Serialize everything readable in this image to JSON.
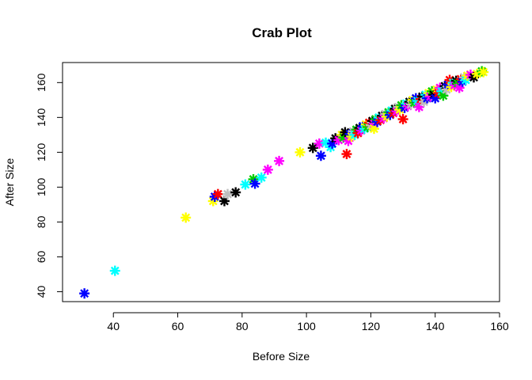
{
  "chart_data": {
    "type": "scatter",
    "title": "Crab Plot",
    "xlabel": "Before Size",
    "ylabel": "After Size",
    "xlim": [
      24.2,
      160
    ],
    "ylim": [
      34.3,
      171.5
    ],
    "x_ticks": [
      40,
      60,
      80,
      100,
      120,
      140,
      160
    ],
    "y_ticks": [
      40,
      60,
      80,
      100,
      120,
      140,
      160
    ],
    "grid": false,
    "marker": "asterisk",
    "colors": {
      "black": "#000000",
      "red": "#ff0000",
      "green": "#00cd00",
      "blue": "#0000ff",
      "cyan": "#00ffff",
      "magenta": "#ff00ff",
      "yellow": "#ffff00",
      "gray": "#bebebe"
    },
    "points": [
      {
        "x": 31,
        "y": 39,
        "color": "blue"
      },
      {
        "x": 40.5,
        "y": 52,
        "color": "cyan"
      },
      {
        "x": 62.5,
        "y": 82.5,
        "color": "yellow"
      },
      {
        "x": 71,
        "y": 92,
        "color": "yellow"
      },
      {
        "x": 71.5,
        "y": 94.5,
        "color": "blue"
      },
      {
        "x": 72.5,
        "y": 96,
        "color": "red"
      },
      {
        "x": 74.5,
        "y": 92,
        "color": "black"
      },
      {
        "x": 75.5,
        "y": 96,
        "color": "gray"
      },
      {
        "x": 78,
        "y": 97,
        "color": "black"
      },
      {
        "x": 81,
        "y": 101.5,
        "color": "cyan"
      },
      {
        "x": 83.5,
        "y": 104.5,
        "color": "green"
      },
      {
        "x": 84,
        "y": 102,
        "color": "blue"
      },
      {
        "x": 86,
        "y": 105.5,
        "color": "cyan"
      },
      {
        "x": 88,
        "y": 110,
        "color": "magenta"
      },
      {
        "x": 91.5,
        "y": 115,
        "color": "magenta"
      },
      {
        "x": 98,
        "y": 120,
        "color": "yellow"
      },
      {
        "x": 102,
        "y": 122.5,
        "color": "black"
      },
      {
        "x": 104,
        "y": 125,
        "color": "magenta"
      },
      {
        "x": 104.5,
        "y": 118,
        "color": "blue"
      },
      {
        "x": 106,
        "y": 125.5,
        "color": "cyan"
      },
      {
        "x": 107.5,
        "y": 123,
        "color": "cyan"
      },
      {
        "x": 108,
        "y": 125,
        "color": "blue"
      },
      {
        "x": 109,
        "y": 128,
        "color": "black"
      },
      {
        "x": 110,
        "y": 127,
        "color": "magenta"
      },
      {
        "x": 111,
        "y": 130,
        "color": "yellow"
      },
      {
        "x": 111.5,
        "y": 128.5,
        "color": "green"
      },
      {
        "x": 112,
        "y": 131.5,
        "color": "black"
      },
      {
        "x": 112.5,
        "y": 119,
        "color": "red"
      },
      {
        "x": 113,
        "y": 126.5,
        "color": "magenta"
      },
      {
        "x": 113.5,
        "y": 130.5,
        "color": "blue"
      },
      {
        "x": 114,
        "y": 129,
        "color": "yellow"
      },
      {
        "x": 114.5,
        "y": 132,
        "color": "gray"
      },
      {
        "x": 115,
        "y": 130,
        "color": "cyan"
      },
      {
        "x": 115.5,
        "y": 133,
        "color": "green"
      },
      {
        "x": 116,
        "y": 131,
        "color": "red"
      },
      {
        "x": 116.5,
        "y": 134,
        "color": "black"
      },
      {
        "x": 117,
        "y": 132.5,
        "color": "magenta"
      },
      {
        "x": 117.5,
        "y": 135,
        "color": "blue"
      },
      {
        "x": 118,
        "y": 133.5,
        "color": "cyan"
      },
      {
        "x": 118.5,
        "y": 136,
        "color": "yellow"
      },
      {
        "x": 119,
        "y": 134.5,
        "color": "green"
      },
      {
        "x": 119.5,
        "y": 137,
        "color": "red"
      },
      {
        "x": 120,
        "y": 135.5,
        "color": "gray"
      },
      {
        "x": 120.5,
        "y": 138,
        "color": "black"
      },
      {
        "x": 121,
        "y": 136.5,
        "color": "magenta"
      },
      {
        "x": 121,
        "y": 133.5,
        "color": "yellow"
      },
      {
        "x": 121.5,
        "y": 139,
        "color": "green"
      },
      {
        "x": 122,
        "y": 137.5,
        "color": "blue"
      },
      {
        "x": 122.5,
        "y": 140,
        "color": "cyan"
      },
      {
        "x": 123,
        "y": 138.5,
        "color": "red"
      },
      {
        "x": 123.5,
        "y": 141,
        "color": "black"
      },
      {
        "x": 124,
        "y": 139.5,
        "color": "magenta"
      },
      {
        "x": 124.5,
        "y": 142,
        "color": "gray"
      },
      {
        "x": 125,
        "y": 140.5,
        "color": "yellow"
      },
      {
        "x": 125.5,
        "y": 143,
        "color": "green"
      },
      {
        "x": 126,
        "y": 141.5,
        "color": "blue"
      },
      {
        "x": 126.5,
        "y": 144,
        "color": "cyan"
      },
      {
        "x": 127,
        "y": 142.5,
        "color": "red"
      },
      {
        "x": 127.5,
        "y": 145,
        "color": "black"
      },
      {
        "x": 128,
        "y": 143.5,
        "color": "magenta"
      },
      {
        "x": 128.5,
        "y": 146,
        "color": "gray"
      },
      {
        "x": 129,
        "y": 144.5,
        "color": "yellow"
      },
      {
        "x": 129.5,
        "y": 147,
        "color": "green"
      },
      {
        "x": 130,
        "y": 139,
        "color": "red"
      },
      {
        "x": 130.5,
        "y": 145.5,
        "color": "blue"
      },
      {
        "x": 131,
        "y": 148,
        "color": "cyan"
      },
      {
        "x": 131.5,
        "y": 146.5,
        "color": "magenta"
      },
      {
        "x": 132,
        "y": 149,
        "color": "black"
      },
      {
        "x": 132.5,
        "y": 147.5,
        "color": "gray"
      },
      {
        "x": 133,
        "y": 150,
        "color": "yellow"
      },
      {
        "x": 133.5,
        "y": 148.5,
        "color": "green"
      },
      {
        "x": 134,
        "y": 151,
        "color": "blue"
      },
      {
        "x": 134.5,
        "y": 149.5,
        "color": "cyan"
      },
      {
        "x": 135,
        "y": 146,
        "color": "magenta"
      },
      {
        "x": 135.5,
        "y": 150.5,
        "color": "red"
      },
      {
        "x": 136,
        "y": 152,
        "color": "black"
      },
      {
        "x": 136.5,
        "y": 149,
        "color": "gray"
      },
      {
        "x": 137,
        "y": 153,
        "color": "cyan"
      },
      {
        "x": 137.5,
        "y": 151,
        "color": "blue"
      },
      {
        "x": 138,
        "y": 154,
        "color": "yellow"
      },
      {
        "x": 138.5,
        "y": 152,
        "color": "magenta"
      },
      {
        "x": 139,
        "y": 155,
        "color": "green"
      },
      {
        "x": 139.5,
        "y": 153,
        "color": "black"
      },
      {
        "x": 140,
        "y": 151,
        "color": "blue"
      },
      {
        "x": 140.5,
        "y": 156,
        "color": "yellow"
      },
      {
        "x": 141,
        "y": 154,
        "color": "red"
      },
      {
        "x": 141.5,
        "y": 157,
        "color": "magenta"
      },
      {
        "x": 142,
        "y": 155,
        "color": "cyan"
      },
      {
        "x": 142.5,
        "y": 152.5,
        "color": "green"
      },
      {
        "x": 143,
        "y": 158,
        "color": "black"
      },
      {
        "x": 143.5,
        "y": 156,
        "color": "gray"
      },
      {
        "x": 144,
        "y": 159,
        "color": "blue"
      },
      {
        "x": 144.5,
        "y": 161.5,
        "color": "red"
      },
      {
        "x": 145,
        "y": 157.5,
        "color": "yellow"
      },
      {
        "x": 145.5,
        "y": 160,
        "color": "cyan"
      },
      {
        "x": 146,
        "y": 158.5,
        "color": "magenta"
      },
      {
        "x": 146.5,
        "y": 161,
        "color": "black"
      },
      {
        "x": 147,
        "y": 159.5,
        "color": "green"
      },
      {
        "x": 147.5,
        "y": 157,
        "color": "magenta"
      },
      {
        "x": 148,
        "y": 162,
        "color": "red"
      },
      {
        "x": 148.5,
        "y": 160.5,
        "color": "blue"
      },
      {
        "x": 149,
        "y": 163,
        "color": "gray"
      },
      {
        "x": 149.5,
        "y": 161.5,
        "color": "cyan"
      },
      {
        "x": 150,
        "y": 164,
        "color": "yellow"
      },
      {
        "x": 151,
        "y": 164.5,
        "color": "magenta"
      },
      {
        "x": 152,
        "y": 163,
        "color": "black"
      },
      {
        "x": 153,
        "y": 165,
        "color": "yellow"
      },
      {
        "x": 154.5,
        "y": 166.5,
        "color": "green"
      },
      {
        "x": 155,
        "y": 166,
        "color": "yellow"
      }
    ]
  }
}
